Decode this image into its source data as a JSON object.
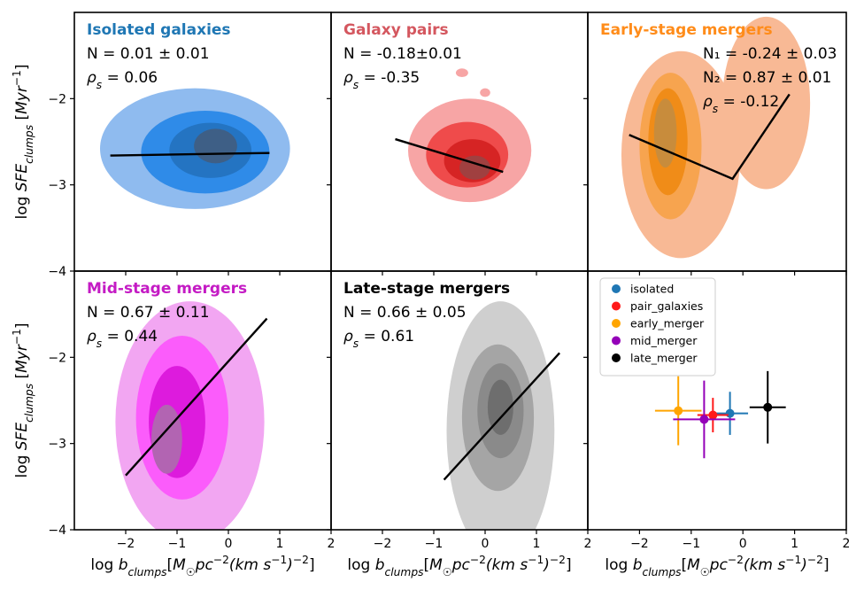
{
  "colors": {
    "isolated": "#1f77b4",
    "pairs": "#d62728",
    "early": "#ff7f0e",
    "mid": "#d600d6",
    "late": "#000000"
  },
  "chart_data": {
    "type": "contour",
    "layout": "2x3 grid",
    "shared": {
      "xlabel": "log b_clumps[M☉pc⁻²(km s⁻¹)⁻²]",
      "ylabel": "log SFE_clumps [Myr⁻¹]",
      "xlim": [
        -3,
        2
      ],
      "ylim": [
        -4,
        -1
      ],
      "xticks": [
        -2,
        -1,
        0,
        1,
        2
      ],
      "yticks": [
        -4,
        -3,
        -2
      ]
    },
    "panels": [
      {
        "key": "isolated",
        "title": "Isolated galaxies",
        "title_color": "#1f77b4",
        "ann": [
          "N = 0.01 ± 0.01",
          "ρs = 0.06"
        ],
        "contour_colors": [
          "#8fbbef",
          "#2f8be8",
          "#2474c2",
          "#3e5f86"
        ],
        "contours": [
          {
            "cx": -0.65,
            "cy": -2.58,
            "rx": 1.85,
            "ry": 0.7
          },
          {
            "cx": -0.45,
            "cy": -2.62,
            "rx": 1.25,
            "ry": 0.48
          },
          {
            "cx": -0.35,
            "cy": -2.6,
            "rx": 0.8,
            "ry": 0.32
          },
          {
            "cx": -0.25,
            "cy": -2.55,
            "rx": 0.42,
            "ry": 0.2
          }
        ],
        "fit": [
          [
            -2.3,
            -2.66
          ],
          [
            0.8,
            -2.63
          ]
        ]
      },
      {
        "key": "pairs",
        "title": "Galaxy pairs",
        "title_color": "#d4575f",
        "ann": [
          "N = -0.18±0.01",
          "ρs = -0.35"
        ],
        "contour_colors": [
          "#f7a5a5",
          "#ef4b4b",
          "#d62424",
          "#a04040"
        ],
        "contours": [
          {
            "cx": -0.3,
            "cy": -2.6,
            "rx": 1.2,
            "ry": 0.6
          },
          {
            "cx": -0.35,
            "cy": -2.65,
            "rx": 0.8,
            "ry": 0.38
          },
          {
            "cx": -0.25,
            "cy": -2.72,
            "rx": 0.55,
            "ry": 0.25
          },
          {
            "cx": -0.2,
            "cy": -2.8,
            "rx": 0.3,
            "ry": 0.14
          }
        ],
        "blobs": [
          {
            "cx": -0.45,
            "cy": -1.7,
            "rx": 0.12,
            "ry": 0.05
          },
          {
            "cx": 0.0,
            "cy": -1.93,
            "rx": 0.1,
            "ry": 0.05
          }
        ],
        "fit": [
          [
            -1.75,
            -2.47
          ],
          [
            0.35,
            -2.85
          ]
        ]
      },
      {
        "key": "early",
        "title": "Early-stage mergers",
        "title_color": "#ff8c1a",
        "ann": [
          "N₁ = -0.24 ± 0.03",
          "N₂ = 0.87 ± 0.01",
          "ρs = -0.12"
        ],
        "contour_colors": [
          "#f8b995",
          "#f7a44f",
          "#f08c18",
          "#c88c3c"
        ],
        "contours": [
          {
            "cx": -1.2,
            "cy": -2.65,
            "rx": 1.15,
            "ry": 1.2
          },
          {
            "cx": -1.4,
            "cy": -2.55,
            "rx": 0.6,
            "ry": 0.85
          },
          {
            "cx": -1.45,
            "cy": -2.5,
            "rx": 0.38,
            "ry": 0.62
          },
          {
            "cx": -1.5,
            "cy": -2.4,
            "rx": 0.22,
            "ry": 0.4
          }
        ],
        "blobs": [
          {
            "cx": 0.45,
            "cy": -2.05,
            "rx": 0.85,
            "ry": 1.0
          }
        ],
        "fit": [
          [
            -2.2,
            -2.42
          ],
          [
            -0.2,
            -2.93
          ],
          [
            0.9,
            -1.95
          ]
        ]
      },
      {
        "key": "mid",
        "title": "Mid-stage mergers",
        "title_color": "#c41bc4",
        "ann": [
          "N = 0.67 ± 0.11",
          "ρs = 0.44"
        ],
        "contour_colors": [
          "#f2a6f2",
          "#fb5cfb",
          "#dd1bdd",
          "#b264b2"
        ],
        "contours": [
          {
            "cx": -0.75,
            "cy": -2.75,
            "rx": 1.45,
            "ry": 1.4
          },
          {
            "cx": -0.9,
            "cy": -2.7,
            "rx": 0.9,
            "ry": 0.95
          },
          {
            "cx": -1.0,
            "cy": -2.75,
            "rx": 0.55,
            "ry": 0.65
          },
          {
            "cx": -1.2,
            "cy": -2.95,
            "rx": 0.3,
            "ry": 0.4
          }
        ],
        "fit": [
          [
            -2.0,
            -3.37
          ],
          [
            0.75,
            -1.55
          ]
        ]
      },
      {
        "key": "late",
        "title": "Late-stage mergers",
        "title_color": "#000000",
        "ann": [
          "N = 0.66 ± 0.05",
          "ρs = 0.61"
        ],
        "contour_colors": [
          "#cfcfcf",
          "#a5a5a5",
          "#8a8a8a",
          "#6e6e6e"
        ],
        "contours": [
          {
            "cx": 0.3,
            "cy": -2.85,
            "rx": 1.05,
            "ry": 1.5
          },
          {
            "cx": 0.25,
            "cy": -2.7,
            "rx": 0.7,
            "ry": 0.85
          },
          {
            "cx": 0.3,
            "cy": -2.62,
            "rx": 0.45,
            "ry": 0.55
          },
          {
            "cx": 0.3,
            "cy": -2.58,
            "rx": 0.25,
            "ry": 0.32
          }
        ],
        "fit": [
          [
            -0.8,
            -3.42
          ],
          [
            1.45,
            -1.95
          ]
        ]
      },
      {
        "key": "summary",
        "legend": [
          "isolated",
          "pair_galaxies",
          "early_merger",
          "mid_merger",
          "late_merger"
        ],
        "legend_colors": [
          "#1f77b4",
          "#ff1a1a",
          "#ffa500",
          "#9400b8",
          "#000000"
        ],
        "points": [
          {
            "name": "isolated",
            "x": -0.25,
            "y": -2.65,
            "xerr": 0.35,
            "yerr": 0.25,
            "color": "#1f77b4"
          },
          {
            "name": "pair_galaxies",
            "x": -0.58,
            "y": -2.67,
            "xerr": 0.3,
            "yerr": 0.2,
            "color": "#ff1a1a"
          },
          {
            "name": "early_merger",
            "x": -1.25,
            "y": -2.62,
            "xerr": 0.45,
            "yerr": 0.4,
            "color": "#ffa500"
          },
          {
            "name": "mid_merger",
            "x": -0.75,
            "y": -2.72,
            "xerr": 0.6,
            "yerr": 0.45,
            "color": "#9400b8"
          },
          {
            "name": "late_merger",
            "x": 0.48,
            "y": -2.58,
            "xerr": 0.35,
            "yerr": 0.42,
            "color": "#000000"
          }
        ]
      }
    ]
  }
}
